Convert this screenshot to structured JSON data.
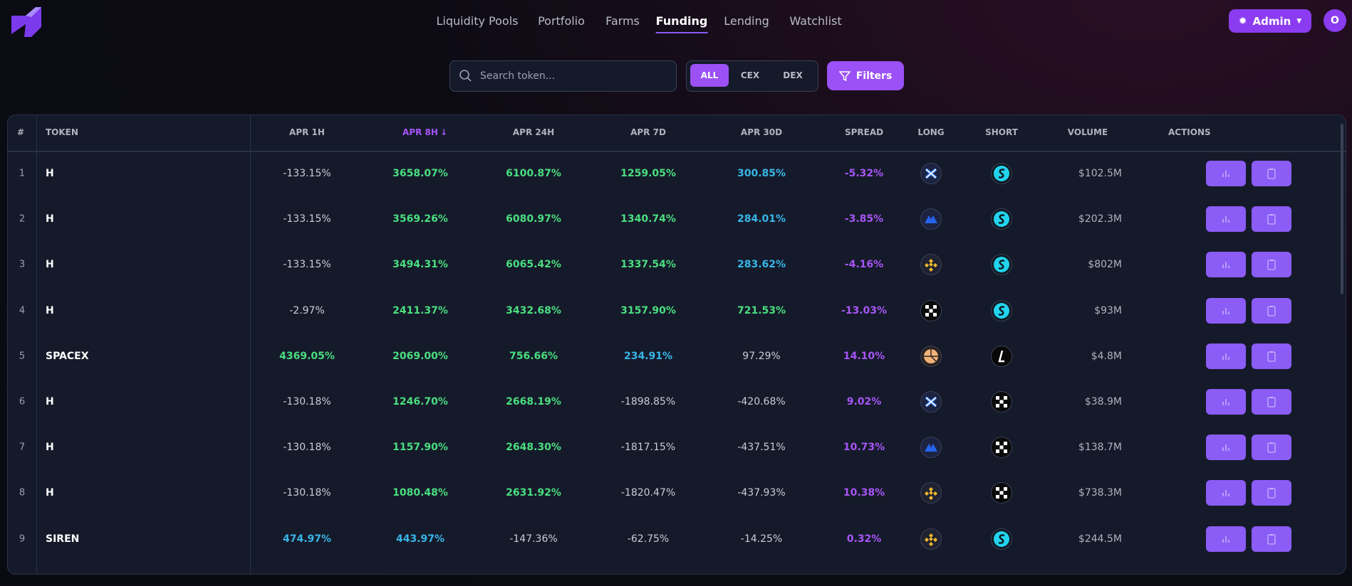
{
  "nav": {
    "links": [
      "Liquidity Pools",
      "Portfolio",
      "Farms",
      "Funding",
      "Lending",
      "Watchlist"
    ],
    "active": 3,
    "admin": "Admin",
    "avatar": "O"
  },
  "toolbar": {
    "search_placeholder": "Search token...",
    "segments": [
      "ALL",
      "CEX",
      "DEX"
    ],
    "active_segment": 0,
    "filters": "Filters"
  },
  "table": {
    "columns": [
      "#",
      "TOKEN",
      "APR 1H",
      "APR 8H",
      "APR 24H",
      "APR 7D",
      "APR 30D",
      "SPREAD",
      "LONG",
      "SHORT",
      "VOLUME",
      "ACTIONS"
    ],
    "sorted_column": 3,
    "rows": [
      [
        "1",
        "H",
        "-133.15%",
        "3658.07%",
        "6100.87%",
        "1259.05%",
        "300.85%",
        "-5.32%",
        "$102.5M"
      ],
      [
        "2",
        "H",
        "-133.15%",
        "3569.26%",
        "6080.97%",
        "1340.74%",
        "284.01%",
        "-3.85%",
        "$202.3M"
      ],
      [
        "3",
        "H",
        "-133.15%",
        "3494.31%",
        "6065.42%",
        "1337.54%",
        "283.62%",
        "-4.16%",
        "$802M"
      ],
      [
        "4",
        "H",
        "-2.97%",
        "2411.37%",
        "3432.68%",
        "3157.90%",
        "721.53%",
        "-13.03%",
        "$93M"
      ],
      [
        "5",
        "SPACEX",
        "4369.05%",
        "2069.00%",
        "756.66%",
        "234.91%",
        "97.29%",
        "14.10%",
        "$4.8M"
      ],
      [
        "6",
        "H",
        "-130.18%",
        "1246.70%",
        "2668.19%",
        "-1898.85%",
        "-420.68%",
        "9.02%",
        "$38.9M"
      ],
      [
        "7",
        "H",
        "-130.18%",
        "1157.90%",
        "2648.30%",
        "-1817.15%",
        "-437.51%",
        "10.73%",
        "$138.7M"
      ],
      [
        "8",
        "H",
        "-130.18%",
        "1080.48%",
        "2631.92%",
        "-1820.47%",
        "-437.93%",
        "10.38%",
        "$738.3M"
      ],
      [
        "9",
        "SIREN",
        "474.97%",
        "443.97%",
        "-147.36%",
        "-62.75%",
        "-14.25%",
        "0.32%",
        "$244.5M"
      ]
    ]
  }
}
